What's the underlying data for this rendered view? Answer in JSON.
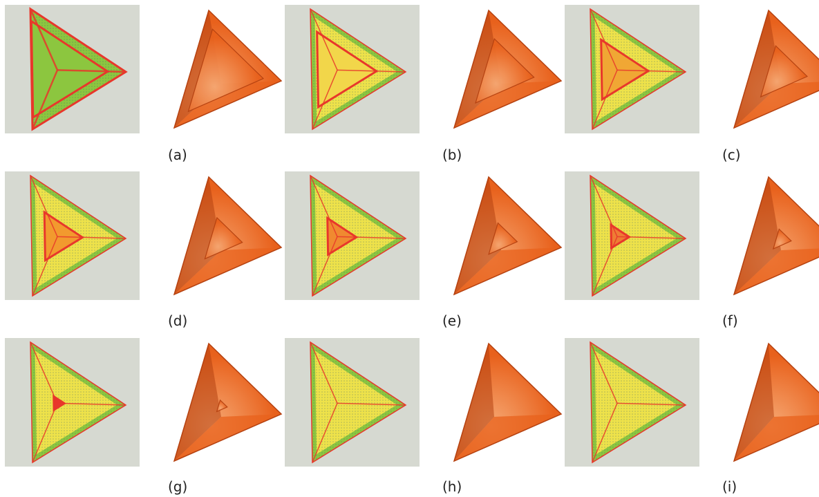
{
  "figure": {
    "cells": [
      {
        "label": "(a)",
        "core_scale": 1.0,
        "core_color": "#9fcf3a",
        "rim_color": "#e8372b",
        "colormap_panel": "distance-map",
        "render_panel": "rendered-tetrahedron"
      },
      {
        "label": "(b)",
        "core_scale": 0.78,
        "core_color": "#f2d64a",
        "rim_color": "#e8372b",
        "colormap_panel": "distance-map",
        "render_panel": "rendered-tetrahedron"
      },
      {
        "label": "(c)",
        "core_scale": 0.62,
        "core_color": "#f0a734",
        "rim_color": "#e8372b",
        "colormap_panel": "distance-map",
        "render_panel": "rendered-tetrahedron"
      },
      {
        "label": "(d)",
        "core_scale": 0.5,
        "core_color": "#f29a2e",
        "rim_color": "#e8372b",
        "colormap_panel": "distance-map",
        "render_panel": "rendered-tetrahedron"
      },
      {
        "label": "(e)",
        "core_scale": 0.38,
        "core_color": "#f08a30",
        "rim_color": "#e8372b",
        "colormap_panel": "distance-map",
        "render_panel": "rendered-tetrahedron"
      },
      {
        "label": "(f)",
        "core_scale": 0.24,
        "core_color": "#ee7d34",
        "rim_color": "#e8372b",
        "colormap_panel": "distance-map",
        "render_panel": "rendered-tetrahedron"
      },
      {
        "label": "(g)",
        "core_scale": 0.14,
        "core_color": "#e8372b",
        "rim_color": "#e8372b",
        "colormap_panel": "distance-map",
        "render_panel": "rendered-tetrahedron"
      },
      {
        "label": "(h)",
        "core_scale": 0.0,
        "core_color": "#e8372b",
        "rim_color": "#e8372b",
        "colormap_panel": "distance-map",
        "render_panel": "rendered-tetrahedron"
      },
      {
        "label": "(i)",
        "core_scale": 0.0,
        "core_color": "#e8372b",
        "rim_color": "#e8372b",
        "colormap_panel": "distance-map",
        "render_panel": "rendered-tetrahedron"
      }
    ],
    "colors": {
      "panel_background": "#d6d9d1",
      "mesh_green": "#8cc63f",
      "mesh_yellow": "#eee24a",
      "mesh_blue": "#3a7fa8",
      "render_orange": "#e8611c",
      "render_dark": "#b54110",
      "render_light": "#f6a873"
    }
  }
}
